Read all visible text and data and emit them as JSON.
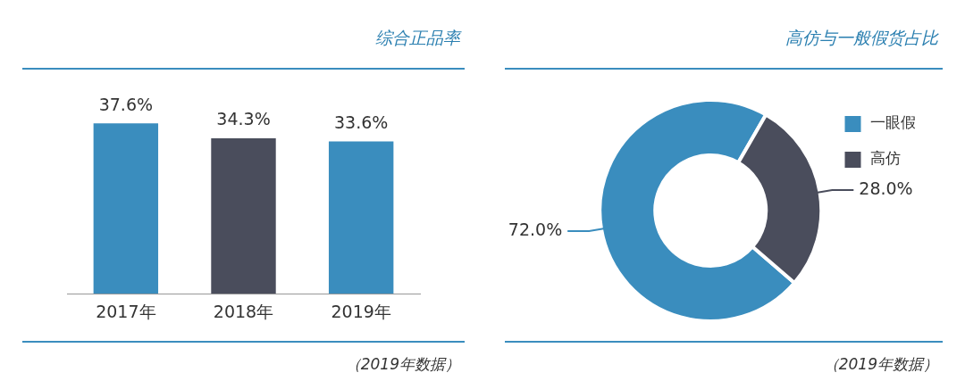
{
  "chart_data": [
    {
      "type": "bar",
      "title": "综合正品率",
      "categories": [
        "2017年",
        "2018年",
        "2019年"
      ],
      "values": [
        37.6,
        34.3,
        33.6
      ],
      "colors": [
        "#3a8dbe",
        "#4a4d5c",
        "#3a8dbe"
      ],
      "data_labels": true,
      "value_labels": [
        "37.6%",
        "34.3%",
        "33.6%"
      ],
      "tick_labels": "x",
      "legend": false,
      "annotations": [
        "（2019年数据）"
      ]
    },
    {
      "type": "donut",
      "title": "高仿与一般假货占比",
      "categories": [
        "一眼假",
        "高仿"
      ],
      "values": [
        72.0,
        28.0
      ],
      "colors": [
        "#3a8dbe",
        "#4a4d5c"
      ],
      "data_labels": true,
      "value_labels": [
        "72.0%",
        "28.0%"
      ],
      "legend": "top right",
      "annotations": [
        "（2019年数据）"
      ]
    }
  ]
}
